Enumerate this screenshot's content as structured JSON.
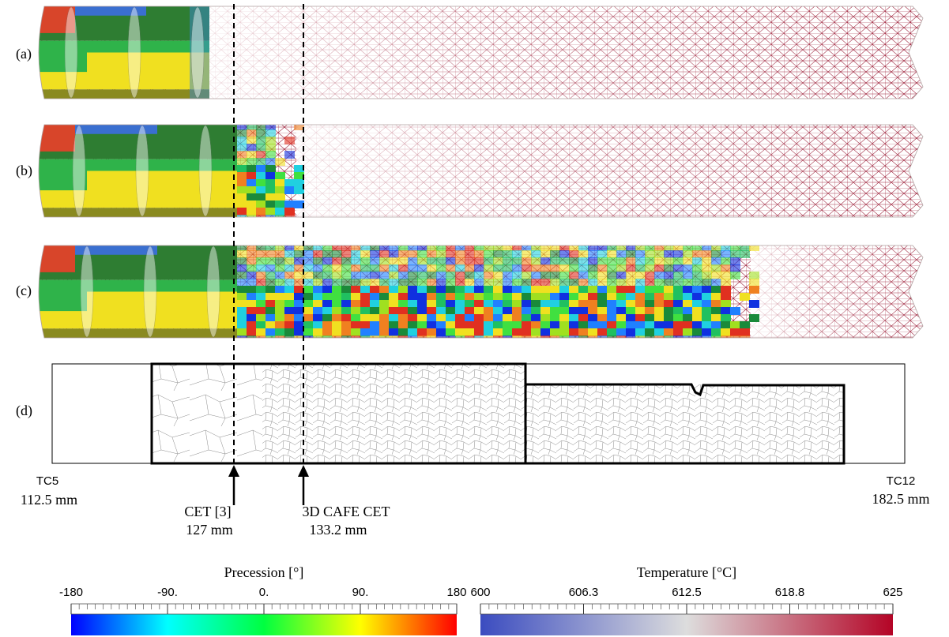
{
  "panels": {
    "labels": [
      "(a)",
      "(b)",
      "(c)",
      "(d)"
    ]
  },
  "annotations": {
    "tc5": {
      "name": "TC5",
      "position": "112.5 mm"
    },
    "tc12": {
      "name": "TC12",
      "position": "182.5 mm"
    },
    "cet_ref": {
      "name": "CET [3]",
      "position": "127 mm"
    },
    "cet_cafe": {
      "name": "3D CAFE CET",
      "position": "133.2 mm"
    }
  },
  "colorbars": [
    {
      "title": "Precession [°]",
      "ticks": [
        "-180",
        "-90.",
        "0.",
        "90.",
        "180"
      ]
    },
    {
      "title": "Temperature [°C]",
      "ticks": [
        "600",
        "606.3",
        "612.5",
        "618.8",
        "625"
      ]
    }
  ]
}
